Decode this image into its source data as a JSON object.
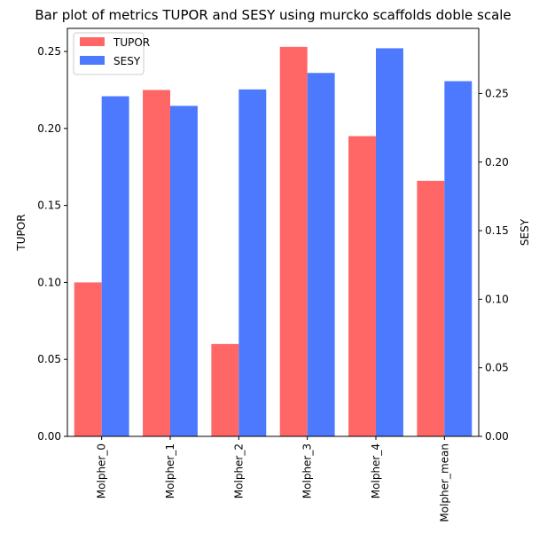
{
  "chart_data": {
    "type": "bar",
    "title": "Bar plot of metrics TUPOR and SESY using murcko scaffolds doble scale",
    "categories": [
      "Molpher_0",
      "Molpher_1",
      "Molpher_2",
      "Molpher_3",
      "Molpher_4",
      "Molpher_mean"
    ],
    "series": [
      {
        "name": "TUPOR",
        "axis": "left",
        "color": "#ff6666",
        "values": [
          0.1,
          0.225,
          0.06,
          0.253,
          0.195,
          0.166
        ]
      },
      {
        "name": "SESY",
        "axis": "right",
        "color": "#4d79ff",
        "values": [
          0.248,
          0.241,
          0.253,
          0.265,
          0.283,
          0.259
        ]
      }
    ],
    "ylabel_left": "TUPOR",
    "ylabel_right": "SESY",
    "ylim_left": [
      0,
      0.265
    ],
    "ylim_right": [
      0,
      0.2975
    ],
    "yticks_left": [
      "0.00",
      "0.05",
      "0.10",
      "0.15",
      "0.20",
      "0.25"
    ],
    "yticks_right": [
      "0.00",
      "0.05",
      "0.10",
      "0.15",
      "0.20",
      "0.25"
    ],
    "grid": false,
    "legend_position": "top-left"
  }
}
